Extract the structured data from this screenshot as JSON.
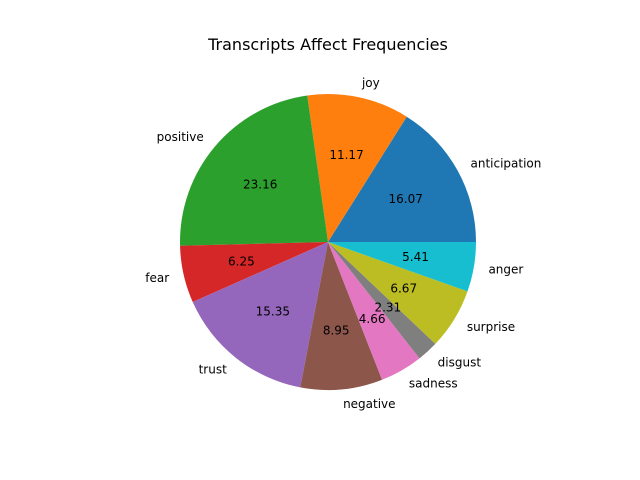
{
  "chart_data": {
    "type": "pie",
    "title": "Transcripts Affect Frequencies",
    "categories": [
      "anticipation",
      "joy",
      "positive",
      "fear",
      "trust",
      "negative",
      "sadness",
      "disgust",
      "surprise",
      "anger"
    ],
    "values": [
      16.07,
      11.17,
      23.16,
      6.25,
      15.35,
      8.95,
      4.66,
      2.31,
      6.67,
      5.41
    ],
    "value_labels": [
      "16.07",
      "11.17",
      "23.16",
      "6.25",
      "15.35",
      "8.95",
      "4.66",
      "2.31",
      "6.67",
      "5.41"
    ],
    "colors": [
      "#1f77b4",
      "#ff7f0e",
      "#2ca02c",
      "#d62728",
      "#9467bd",
      "#8c564b",
      "#e377c2",
      "#7f7f7f",
      "#bcbd22",
      "#17becf"
    ],
    "start_angle_deg": 0,
    "direction": "counterclockwise",
    "legend": "none"
  }
}
